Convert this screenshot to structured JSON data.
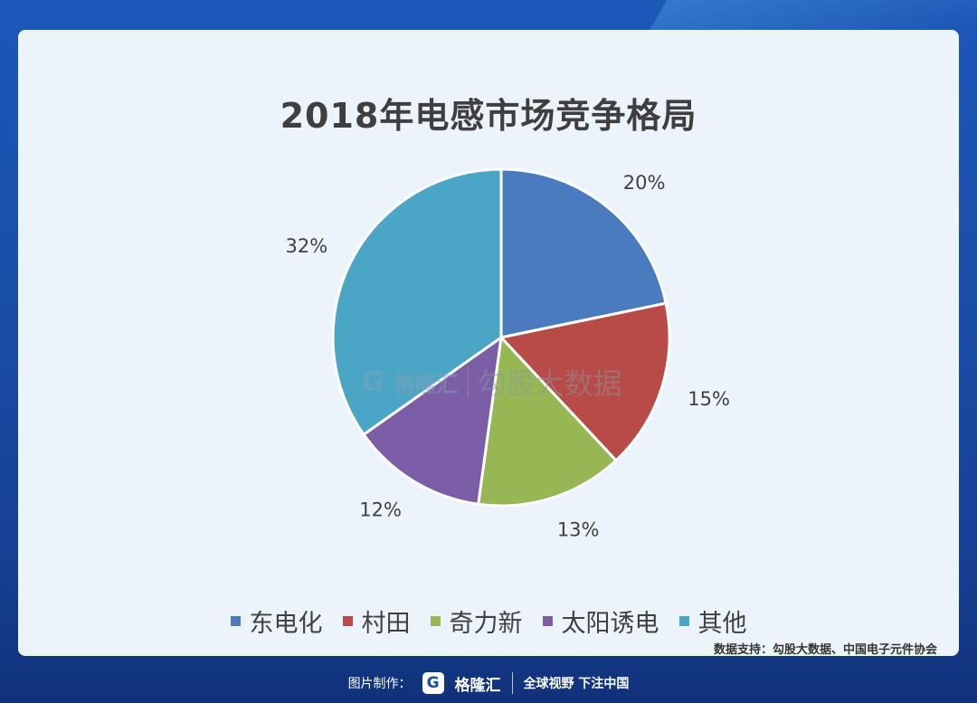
{
  "colors": {
    "东电化": "#4a7bbf",
    "村田": "#b84a48",
    "奇力新": "#97b755",
    "太阳诱电": "#7b5ea6",
    "其他": "#4aa6c4"
  },
  "chart_data": {
    "type": "pie",
    "title": "2018年电感市场竞争格局",
    "categories": [
      "东电化",
      "村田",
      "奇力新",
      "太阳诱电",
      "其他"
    ],
    "values": [
      20,
      15,
      13,
      12,
      32
    ],
    "labels": [
      "20%",
      "15%",
      "13%",
      "12%",
      "32%"
    ],
    "colors": [
      "#4a7bbf",
      "#b84a48",
      "#97b755",
      "#7b5ea6",
      "#4aa6c4"
    ],
    "legend_position": "bottom"
  },
  "watermark": {
    "logo": "G",
    "brand": "格隆汇",
    "text": "勾股大数据"
  },
  "source": "数据支持：勾股大数据、中国电子元件协会",
  "footer": {
    "label": "图片制作：",
    "logo": "G",
    "brand": "格隆汇",
    "slogan": "全球视野 下注中国"
  }
}
